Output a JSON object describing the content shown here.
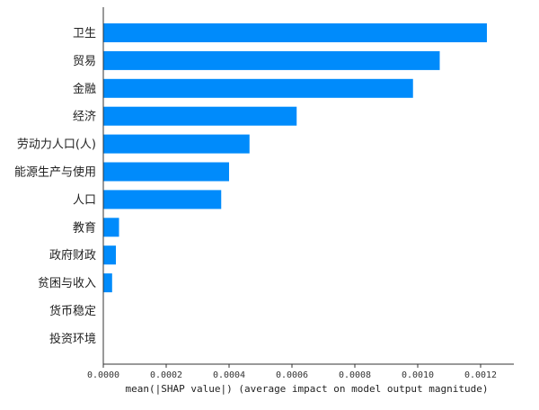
{
  "chart_data": {
    "type": "bar",
    "orientation": "horizontal",
    "categories": [
      "卫生",
      "贸易",
      "金融",
      "经济",
      "劳动力人口(人)",
      "能源生产与使用",
      "人口",
      "教育",
      "政府财政",
      "贫困与收入",
      "货币稳定",
      "投资环境"
    ],
    "values": [
      0.00122,
      0.00107,
      0.000985,
      0.000615,
      0.000465,
      0.0004,
      0.000375,
      5e-05,
      4e-05,
      2.8e-05,
      0,
      0
    ],
    "xlabel": "mean(|SHAP value|) (average impact on model output magnitude)",
    "xticks": [
      "0.0000",
      "0.0002",
      "0.0004",
      "0.0006",
      "0.0008",
      "0.0010",
      "0.0012"
    ],
    "xlim": [
      0,
      0.0013
    ],
    "grid": false,
    "bar_color": "#008bfb"
  }
}
